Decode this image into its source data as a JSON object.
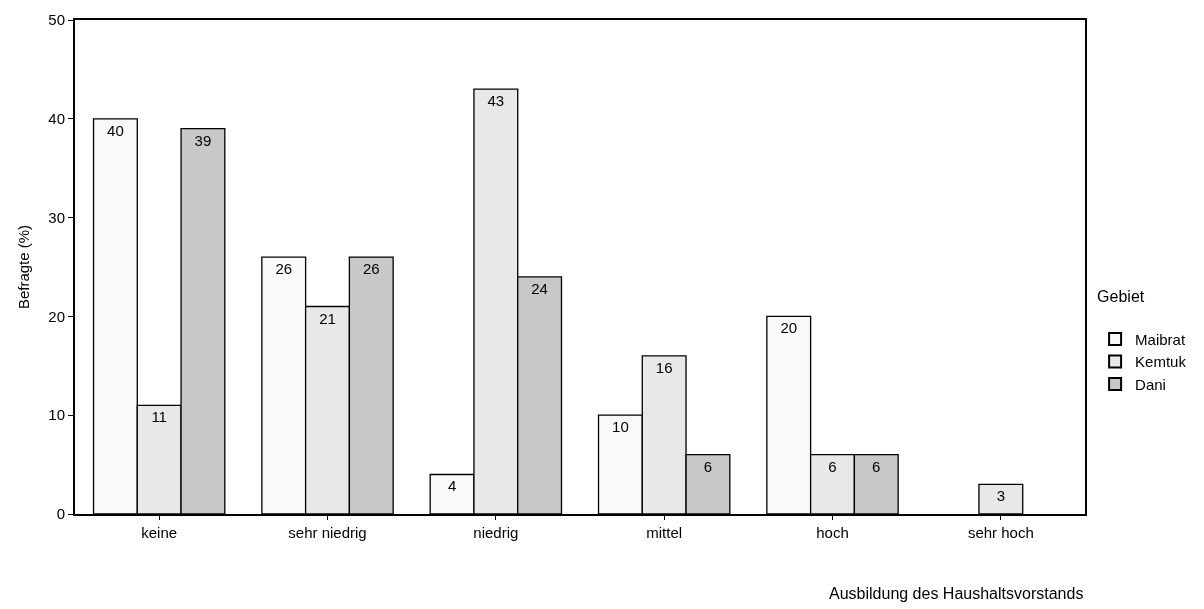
{
  "chart_data": {
    "type": "bar",
    "xlabel": "Ausbildung des Haushaltsvorstands",
    "ylabel": "Befragte (%)",
    "legend_title": "Gebiet",
    "categories": [
      "keine",
      "sehr niedrig",
      "niedrig",
      "mittel",
      "hoch",
      "sehr hoch"
    ],
    "series": [
      {
        "name": "Maibrat",
        "color": "#f9f9f9",
        "values": [
          40,
          26,
          4,
          10,
          20,
          null
        ]
      },
      {
        "name": "Kemtuk",
        "color": "#e8e8e8",
        "values": [
          11,
          21,
          43,
          16,
          6,
          3
        ]
      },
      {
        "name": "Dani",
        "color": "#c8c8c8",
        "values": [
          39,
          26,
          24,
          6,
          6,
          null
        ]
      }
    ],
    "ylim": [
      0,
      50
    ],
    "yticks": [
      0,
      10,
      20,
      30,
      40,
      50
    ],
    "legend": "right",
    "data_labels": true
  }
}
